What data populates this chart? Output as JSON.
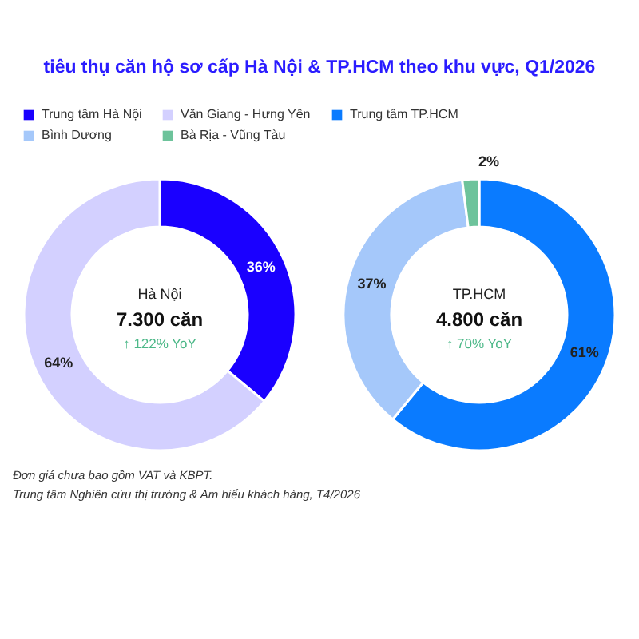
{
  "chart_data": [
    {
      "type": "other",
      "title": "tiêu thụ căn hộ sơ cấp Hà Nội & TP.HCM theo khu vực, Q1/2026",
      "annotations": [
        "Đơn giá chưa bao gồm VAT và KBPT.",
        "Trung tâm Nghiên cứu thị trường & Am hiểu khách hàng, T4/2026"
      ]
    },
    {
      "type": "donut",
      "title": "Hà Nội",
      "subtitle": "7.300 căn",
      "annotations": [
        "↑ 122% YoY"
      ],
      "categories": [
        "Trung tâm Hà Nội",
        "Văn Giang - Hưng Yên"
      ],
      "values": [
        36,
        64
      ],
      "colors": [
        "#1a00ff",
        "#d3d0ff"
      ],
      "value_labels": [
        "36%",
        "64%"
      ],
      "legend": "top"
    },
    {
      "type": "donut",
      "title": "TP.HCM",
      "subtitle": "4.800 căn",
      "annotations": [
        "↑ 70% YoY"
      ],
      "categories": [
        "Trung tâm TP.HCM",
        "Bình Dương",
        "Bà Rịa - Vũng Tàu"
      ],
      "values": [
        61,
        37,
        2
      ],
      "colors": [
        "#0a7bff",
        "#a5c8fa",
        "#6dc39b"
      ],
      "value_labels": [
        "61%",
        "37%",
        "2%"
      ],
      "legend": "top"
    }
  ]
}
